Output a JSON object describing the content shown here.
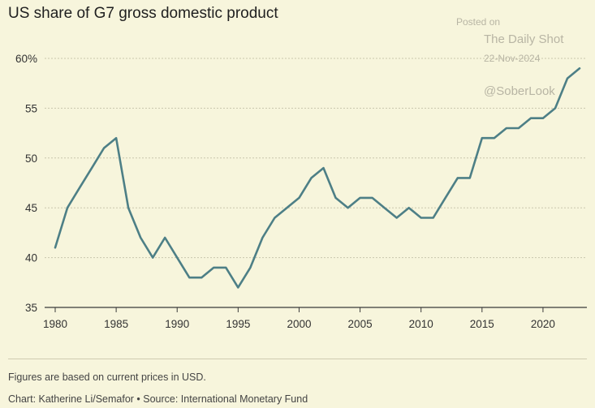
{
  "chart_data": {
    "type": "line",
    "title": "US share of G7 gross domestic product",
    "xlabel": "",
    "ylabel": "",
    "y_unit_label": "%",
    "ylim": [
      35,
      60
    ],
    "xlim": [
      1980,
      2023
    ],
    "yticks": [
      "60%",
      "55",
      "50",
      "45",
      "40",
      "35"
    ],
    "xticks": [
      "1980",
      "1985",
      "1990",
      "1995",
      "2000",
      "2005",
      "2010",
      "2015",
      "2020"
    ],
    "grid": "horizontal",
    "series": [
      {
        "name": "US share of G7 GDP",
        "color": "#4d7f86",
        "x": [
          1980,
          1981,
          1982,
          1983,
          1984,
          1985,
          1986,
          1987,
          1988,
          1989,
          1990,
          1991,
          1992,
          1993,
          1994,
          1995,
          1996,
          1997,
          1998,
          1999,
          2000,
          2001,
          2002,
          2003,
          2004,
          2005,
          2006,
          2007,
          2008,
          2009,
          2010,
          2011,
          2012,
          2013,
          2014,
          2015,
          2016,
          2017,
          2018,
          2019,
          2020,
          2021,
          2022,
          2023
        ],
        "values": [
          41,
          45,
          47,
          49,
          51,
          52,
          45,
          42,
          40,
          42,
          40,
          38,
          38,
          39,
          39,
          37,
          39,
          42,
          44,
          45,
          46,
          48,
          49,
          46,
          45,
          46,
          46,
          45,
          44,
          45,
          44,
          44,
          46,
          48,
          48,
          52,
          52,
          53,
          53,
          54,
          54,
          55,
          58,
          59
        ]
      }
    ]
  },
  "notes": {
    "prices": "Figures are based on current prices in USD.",
    "credit": "Chart: Katherine Li/Semafor • Source: International Monetary Fund"
  },
  "watermark": {
    "posted": "Posted on",
    "outlet": "The Daily Shot",
    "date": "22-Nov-2024",
    "handle": "@SoberLook"
  }
}
